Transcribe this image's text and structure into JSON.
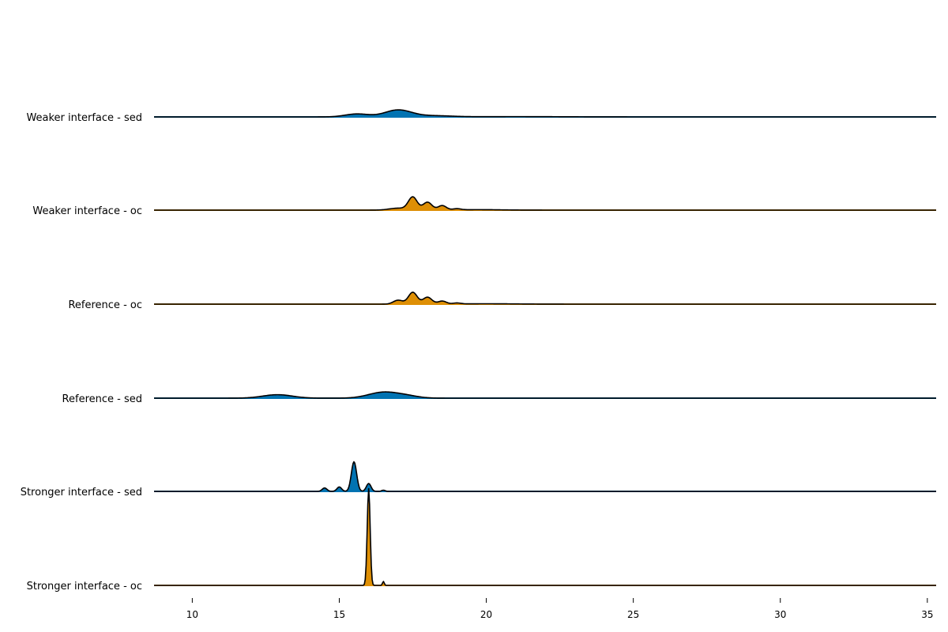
{
  "colors": {
    "sed": "#0173b2",
    "oc": "#de8f05",
    "outline": "#000000",
    "background": "#ffffff"
  },
  "chart_data": {
    "type": "ridgeline",
    "title": "",
    "xlabel": "",
    "ylabel": "",
    "xlim": [
      8.7,
      35.3
    ],
    "x_ticks": [
      10,
      15,
      20,
      25,
      30,
      35
    ],
    "grid": false,
    "legend": "none",
    "series": [
      {
        "name": "Weaker interface - sed",
        "kind": "sed",
        "peaks": [
          {
            "mu": 15.6,
            "sigma": 0.4,
            "h": 0.03
          },
          {
            "mu": 17.0,
            "sigma": 0.45,
            "h": 0.07
          },
          {
            "mu": 18.2,
            "sigma": 0.6,
            "h": 0.012
          },
          {
            "mu": 21.0,
            "sigma": 1.5,
            "h": 0.003
          }
        ]
      },
      {
        "name": "Weaker interface - oc",
        "kind": "oc",
        "peaks": [
          {
            "mu": 17.0,
            "sigma": 0.3,
            "h": 0.02
          },
          {
            "mu": 17.5,
            "sigma": 0.15,
            "h": 0.13
          },
          {
            "mu": 18.0,
            "sigma": 0.15,
            "h": 0.08
          },
          {
            "mu": 18.5,
            "sigma": 0.14,
            "h": 0.045
          },
          {
            "mu": 19.0,
            "sigma": 0.13,
            "h": 0.012
          },
          {
            "mu": 19.7,
            "sigma": 0.8,
            "h": 0.005
          }
        ]
      },
      {
        "name": "Reference - oc",
        "kind": "oc",
        "peaks": [
          {
            "mu": 17.0,
            "sigma": 0.16,
            "h": 0.04
          },
          {
            "mu": 17.5,
            "sigma": 0.15,
            "h": 0.12
          },
          {
            "mu": 18.0,
            "sigma": 0.15,
            "h": 0.07
          },
          {
            "mu": 18.5,
            "sigma": 0.14,
            "h": 0.03
          },
          {
            "mu": 19.0,
            "sigma": 0.13,
            "h": 0.01
          },
          {
            "mu": 20.0,
            "sigma": 1.0,
            "h": 0.004
          }
        ]
      },
      {
        "name": "Reference - sed",
        "kind": "sed",
        "peaks": [
          {
            "mu": 12.9,
            "sigma": 0.5,
            "h": 0.035
          },
          {
            "mu": 16.5,
            "sigma": 0.5,
            "h": 0.06
          },
          {
            "mu": 17.3,
            "sigma": 0.4,
            "h": 0.02
          }
        ]
      },
      {
        "name": "Stronger interface - sed",
        "kind": "sed",
        "peaks": [
          {
            "mu": 14.5,
            "sigma": 0.08,
            "h": 0.035
          },
          {
            "mu": 15.0,
            "sigma": 0.08,
            "h": 0.045
          },
          {
            "mu": 15.5,
            "sigma": 0.09,
            "h": 0.3
          },
          {
            "mu": 16.0,
            "sigma": 0.08,
            "h": 0.08
          },
          {
            "mu": 16.5,
            "sigma": 0.06,
            "h": 0.012
          }
        ]
      },
      {
        "name": "Stronger interface - oc",
        "kind": "oc",
        "peaks": [
          {
            "mu": 16.0,
            "sigma": 0.05,
            "h": 0.98
          },
          {
            "mu": 16.5,
            "sigma": 0.03,
            "h": 0.04
          }
        ]
      }
    ]
  }
}
